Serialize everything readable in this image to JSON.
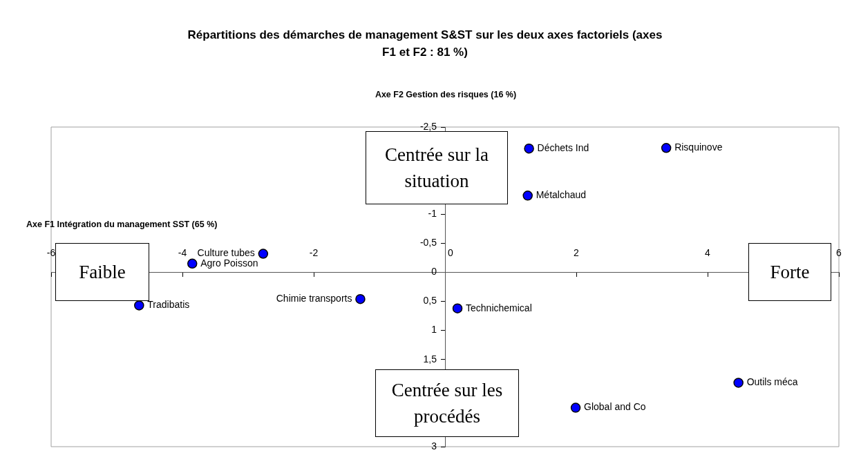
{
  "chart_data": {
    "type": "scatter",
    "title": "Répartitions des démarches de management S&ST sur les deux axes factoriels (axes F1 et F2 : 81 %)",
    "xlabel": "Axe F1 Intégration du management SST (65 %)",
    "ylabel": "Axe F2 Gestion des risques (16 %)",
    "xlim": [
      -6,
      6
    ],
    "xticks": [
      -6,
      -4,
      -2,
      0,
      2,
      4,
      6
    ],
    "ylim": [
      3,
      -2.5
    ],
    "yticks": [
      {
        "value": -2.5,
        "label": "-2,5"
      },
      {
        "value": -2,
        "label": null
      },
      {
        "value": -1.5,
        "label": null
      },
      -1,
      {
        "value": -0.5,
        "label": "-0,5"
      },
      0,
      {
        "value": 0.5,
        "label": "0,5"
      },
      1,
      {
        "value": 1.5,
        "label": "1,5"
      },
      {
        "value": 2,
        "label": null
      },
      {
        "value": 2.5,
        "label": null
      },
      3
    ],
    "marker": "circle",
    "grid": false,
    "legend": false,
    "series": [
      {
        "name": "Déchets Ind",
        "color": "#0000ff",
        "x": [
          1.28
        ],
        "values": [
          -2.13
        ]
      },
      {
        "name": "Risquinove",
        "color": "#0000ff",
        "x": [
          3.37
        ],
        "values": [
          -2.14
        ]
      },
      {
        "name": "Métalchaud",
        "color": "#0000ff",
        "x": [
          1.26
        ],
        "values": [
          -1.32
        ]
      },
      {
        "name": "Culture tubes",
        "color": "#0000ff",
        "x": [
          -2.77
        ],
        "values": [
          -0.32
        ]
      },
      {
        "name": "Agro Poisson",
        "color": "#0000ff",
        "x": [
          -3.85
        ],
        "values": [
          -0.15
        ]
      },
      {
        "name": "Tradibatis",
        "color": "#0000ff",
        "x": [
          -4.66
        ],
        "values": [
          0.57
        ]
      },
      {
        "name": "Chimie transports",
        "color": "#0000ff",
        "x": [
          -1.29
        ],
        "values": [
          0.46
        ]
      },
      {
        "name": "Technichemical",
        "color": "#0000ff",
        "x": [
          0.19
        ],
        "values": [
          0.62
        ]
      },
      {
        "name": "Outils méca",
        "color": "#0000ff",
        "x": [
          4.47
        ],
        "values": [
          1.9
        ]
      },
      {
        "name": "Global and Co",
        "color": "#0000ff",
        "x": [
          1.99
        ],
        "values": [
          2.33
        ]
      }
    ],
    "annotations": [
      "Faible",
      "Forte",
      "Centrée sur la situation",
      "Centrée sur les procédés"
    ]
  }
}
